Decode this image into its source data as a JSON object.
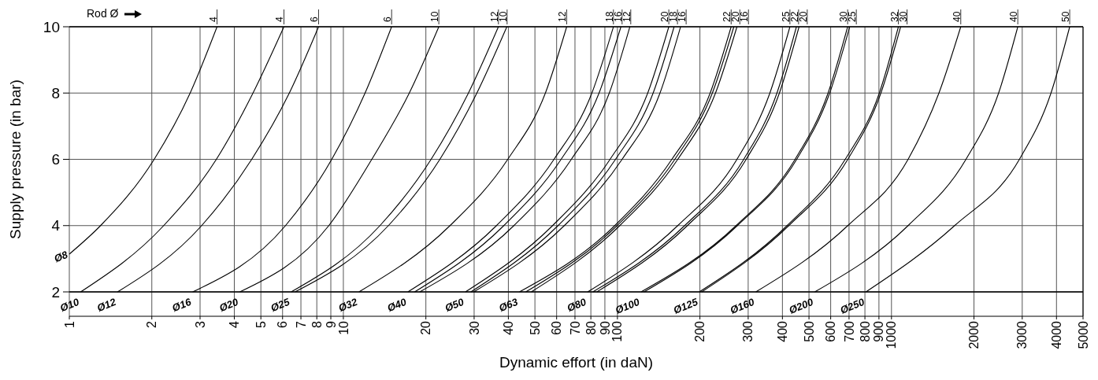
{
  "chart_data": {
    "type": "line",
    "xlabel": "Dynamic effort (in daN)",
    "ylabel": "Supply pressure (in bar)",
    "log": "x",
    "grid": true,
    "legend": "top",
    "xlim": [
      1,
      5000
    ],
    "ylim": [
      2,
      10
    ],
    "xticks": [
      1,
      2,
      3,
      4,
      5,
      6,
      7,
      8,
      9,
      10,
      20,
      30,
      40,
      50,
      60,
      70,
      80,
      90,
      100,
      200,
      300,
      400,
      500,
      600,
      700,
      800,
      900,
      1000,
      2000,
      3000,
      4000,
      5000
    ],
    "yticks": [
      2,
      4,
      6,
      8,
      10
    ],
    "annotations": [
      "Rod Ø",
      {
        "text": "Ø8",
        "x": 1,
        "y": 3.14
      },
      {
        "text": "Ø10",
        "x": 1.1,
        "y": 2
      },
      {
        "text": "Ø12",
        "x": 1.5,
        "y": 2
      },
      {
        "text": "Ø16",
        "x": 2.82,
        "y": 2
      },
      {
        "text": "Ø20",
        "x": 4.19,
        "y": 2
      },
      {
        "text": "Ø25",
        "x": 6.45,
        "y": 2
      },
      {
        "text": "Ø32",
        "x": 11.4,
        "y": 2
      },
      {
        "text": "Ø40",
        "x": 17.2,
        "y": 2
      },
      {
        "text": "Ø50",
        "x": 27.9,
        "y": 2
      },
      {
        "text": "Ø63",
        "x": 43.9,
        "y": 2
      },
      {
        "text": "Ø80",
        "x": 77.9,
        "y": 2
      },
      {
        "text": "Ø100",
        "x": 122,
        "y": 2
      },
      {
        "text": "Ø125",
        "x": 199,
        "y": 2
      },
      {
        "text": "Ø160",
        "x": 320,
        "y": 2
      },
      {
        "text": "Ø200",
        "x": 525,
        "y": 2
      },
      {
        "text": "Ø250",
        "x": 807,
        "y": 2
      }
    ],
    "series": [
      {
        "name": "4",
        "color": "#000000",
        "x": [
          1,
          1.3,
          2.04,
          2.76,
          3.46
        ],
        "values": [
          3.14,
          4,
          6,
          8,
          10
        ]
      },
      {
        "name": "4",
        "color": "#000000",
        "x": [
          1.1,
          2.21,
          3.44,
          4.68,
          6.07
        ],
        "values": [
          2,
          4,
          6,
          8,
          10
        ]
      },
      {
        "name": "6",
        "color": "#000000",
        "x": [
          1.5,
          3.04,
          4.63,
          6.35,
          8.12
        ],
        "values": [
          2,
          4,
          6,
          8,
          10
        ]
      },
      {
        "name": "6",
        "color": "#000000",
        "x": [
          2.82,
          6.15,
          9.07,
          12,
          15
        ],
        "values": [
          2,
          4,
          6,
          8,
          10
        ]
      },
      {
        "name": "10",
        "color": "#000000",
        "x": [
          4.19,
          8.85,
          12.7,
          17.4,
          22.3
        ],
        "values": [
          2,
          4,
          6,
          8,
          10
        ]
      },
      {
        "name": "12",
        "color": "#000000",
        "x": [
          6.45,
          13.6,
          20.9,
          28.6,
          36.8
        ],
        "values": [
          2,
          4,
          6,
          8,
          10
        ]
      },
      {
        "name": "10",
        "color": "#000000",
        "x": [
          6.66,
          14.6,
          22.5,
          30.7,
          39.5
        ],
        "values": [
          2,
          4,
          6,
          8,
          10
        ]
      },
      {
        "name": "12",
        "color": "#000000",
        "x": [
          11.4,
          24.5,
          39.8,
          54.6,
          65.3
        ],
        "values": [
          2,
          4,
          6,
          8,
          10
        ]
      },
      {
        "name": "18",
        "color": "#000000",
        "x": [
          17.2,
          36.2,
          58.7,
          80.7,
          96.7
        ],
        "values": [
          2,
          4,
          6,
          8,
          10
        ]
      },
      {
        "name": "16",
        "color": "#000000",
        "x": [
          18.2,
          38.5,
          62.3,
          85.7,
          103
        ],
        "values": [
          2,
          4,
          6,
          8,
          10
        ]
      },
      {
        "name": "12",
        "color": "#000000",
        "x": [
          19,
          41.9,
          67.9,
          93.4,
          111
        ],
        "values": [
          2,
          4,
          6,
          8,
          10
        ]
      },
      {
        "name": "20",
        "color": "#000000",
        "x": [
          27.9,
          58,
          94,
          129,
          154
        ],
        "values": [
          2,
          4,
          6,
          8,
          10
        ]
      },
      {
        "name": "18",
        "color": "#000000",
        "x": [
          29.2,
          60.7,
          98.4,
          135,
          161
        ],
        "values": [
          2,
          4,
          6,
          8,
          10
        ]
      },
      {
        "name": "16",
        "color": "#000000",
        "x": [
          29.9,
          64,
          104,
          143,
          170
        ],
        "values": [
          2,
          4,
          6,
          8,
          10
        ]
      },
      {
        "name": "22",
        "color": "#000000",
        "x": [
          43.9,
          97.8,
          158,
          218,
          260
        ],
        "values": [
          2,
          4,
          6,
          8,
          10
        ]
      },
      {
        "name": "20",
        "color": "#000000",
        "x": [
          46.3,
          99.7,
          162,
          222,
          266
        ],
        "values": [
          2,
          4,
          6,
          8,
          10
        ]
      },
      {
        "name": "16",
        "color": "#000000",
        "x": [
          48.5,
          102,
          166,
          228,
          273
        ],
        "values": [
          2,
          4,
          6,
          8,
          10
        ]
      },
      {
        "name": "25",
        "color": "#000000",
        "x": [
          77.9,
          166,
          273,
          360,
          426
        ],
        "values": [
          2,
          4,
          6,
          8,
          10
        ]
      },
      {
        "name": "22",
        "color": "#000000",
        "x": [
          81.4,
          176,
          289,
          382,
          450
        ],
        "values": [
          2,
          4,
          6,
          8,
          10
        ]
      },
      {
        "name": "20",
        "color": "#000000",
        "x": [
          84.1,
          180,
          295,
          390,
          460
        ],
        "values": [
          2,
          4,
          6,
          8,
          10
        ]
      },
      {
        "name": "30",
        "color": "#000000",
        "x": [
          122,
          271,
          445,
          587,
          692
        ],
        "values": [
          2,
          4,
          6,
          8,
          10
        ]
      },
      {
        "name": "25",
        "color": "#000000",
        "x": [
          125,
          274,
          451,
          595,
          704
        ],
        "values": [
          2,
          4,
          6,
          8,
          10
        ]
      },
      {
        "name": "32",
        "color": "#000000",
        "x": [
          199,
          416,
          678,
          903,
          1060
        ],
        "values": [
          2,
          4,
          6,
          8,
          10
        ]
      },
      {
        "name": "30",
        "color": "#000000",
        "x": [
          203,
          422,
          693,
          915,
          1080
        ],
        "values": [
          2,
          4,
          6,
          8,
          10
        ]
      },
      {
        "name": "40",
        "color": "#000000",
        "x": [
          320,
          693,
          1150,
          1490,
          1790
        ],
        "values": [
          2,
          4,
          6,
          8,
          10
        ]
      },
      {
        "name": "40",
        "color": "#000000",
        "x": [
          525,
          1150,
          1870,
          2460,
          2890
        ],
        "values": [
          2,
          4,
          6,
          8,
          10
        ]
      },
      {
        "name": "50",
        "color": "#000000",
        "x": [
          807,
          1700,
          2930,
          3820,
          4470
        ],
        "values": [
          2,
          4,
          6,
          8,
          10
        ]
      }
    ]
  }
}
